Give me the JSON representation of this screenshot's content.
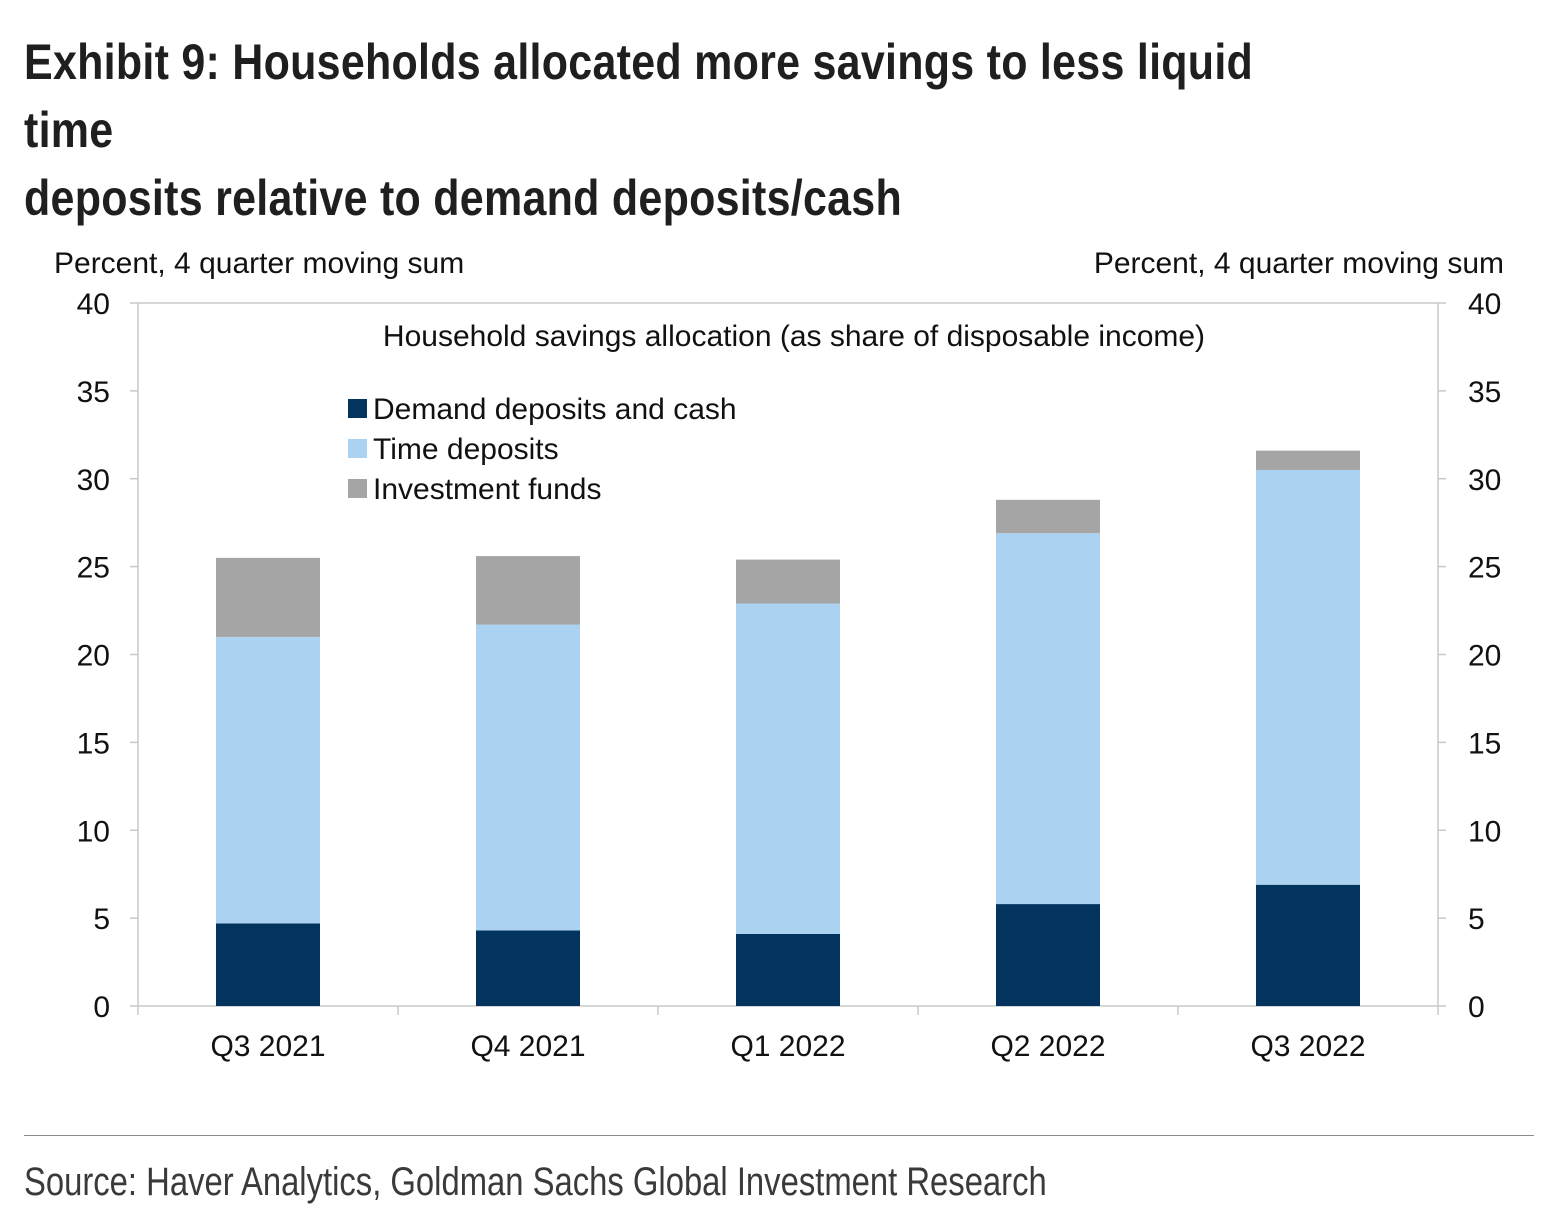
{
  "title": {
    "line1": "Exhibit 9: Households allocated more savings to less liquid time",
    "line2": "deposits relative to demand deposits/cash"
  },
  "source": "Source: Haver Analytics, Goldman Sachs Global Investment Research",
  "chart_data": {
    "type": "bar",
    "stacked": true,
    "subtitle": "Household savings allocation (as share of disposable income)",
    "ylabel_left": "Percent, 4 quarter moving sum",
    "ylabel_right": "Percent, 4 quarter moving sum",
    "ylim": [
      0,
      40
    ],
    "yticks": [
      0,
      5,
      10,
      15,
      20,
      25,
      30,
      35,
      40
    ],
    "categories": [
      "Q3 2021",
      "Q4 2021",
      "Q1 2022",
      "Q2 2022",
      "Q3 2022"
    ],
    "series": [
      {
        "name": "Demand deposits and cash",
        "color": "#02345f",
        "values": [
          4.7,
          4.3,
          4.1,
          5.8,
          6.9
        ]
      },
      {
        "name": "Time deposits",
        "color": "#abd3f1",
        "values": [
          16.3,
          17.4,
          18.8,
          21.1,
          23.6
        ]
      },
      {
        "name": "Investment funds",
        "color": "#a5a5a5",
        "values": [
          4.5,
          3.9,
          2.5,
          1.9,
          1.1
        ]
      }
    ],
    "grid": false,
    "legend_position": "top-left"
  }
}
